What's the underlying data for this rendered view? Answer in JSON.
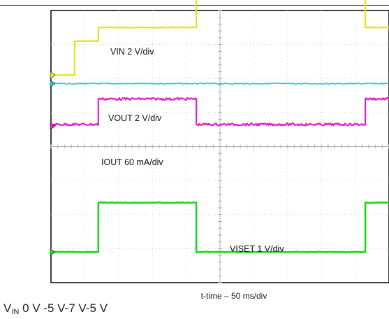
{
  "chart_data": {
    "type": "line",
    "title": "",
    "xlabel": "t-time – 50 ms/div",
    "ylabel": "",
    "x_divisions": 10,
    "y_divisions": 8,
    "grid": true,
    "series": [
      {
        "name": "VIN 2 V/div",
        "color": "#e8e21a",
        "ground_div": 6.1,
        "x_div": [
          0.0,
          0.7,
          0.7,
          1.4,
          1.4,
          4.3,
          4.3,
          9.3,
          9.3,
          10.0
        ],
        "value_div": [
          0.0,
          0.0,
          1.0,
          1.0,
          1.4,
          1.4,
          3.5,
          3.5,
          1.4,
          1.4
        ]
      },
      {
        "name": "VOUT  2 V/div",
        "color": "#22c7d9",
        "ground_div": 5.85,
        "x_div": [
          0.0,
          10.0
        ],
        "value_div": [
          0.0,
          0.0
        ]
      },
      {
        "name": "IOUT 60 mA/div",
        "color": "#e21ec8",
        "ground_div": 4.6,
        "x_div": [
          0.0,
          1.4,
          1.4,
          4.3,
          4.3,
          9.3,
          9.3,
          10.0
        ],
        "value_div": [
          0.05,
          0.05,
          0.8,
          0.8,
          0.05,
          0.05,
          0.8,
          0.8
        ]
      },
      {
        "name": "VISET 1 V/div",
        "color": "#22d41c",
        "ground_div": 0.9,
        "x_div": [
          0.0,
          1.4,
          1.4,
          4.3,
          4.3,
          9.3,
          9.3,
          10.0
        ],
        "value_div": [
          0.0,
          0.0,
          1.45,
          1.45,
          0.0,
          0.0,
          1.45,
          1.45
        ]
      }
    ]
  },
  "caption": {
    "v_main": "V",
    "v_sub": "IN",
    "rest": " 0 V -5 V-7 V-5 V"
  }
}
